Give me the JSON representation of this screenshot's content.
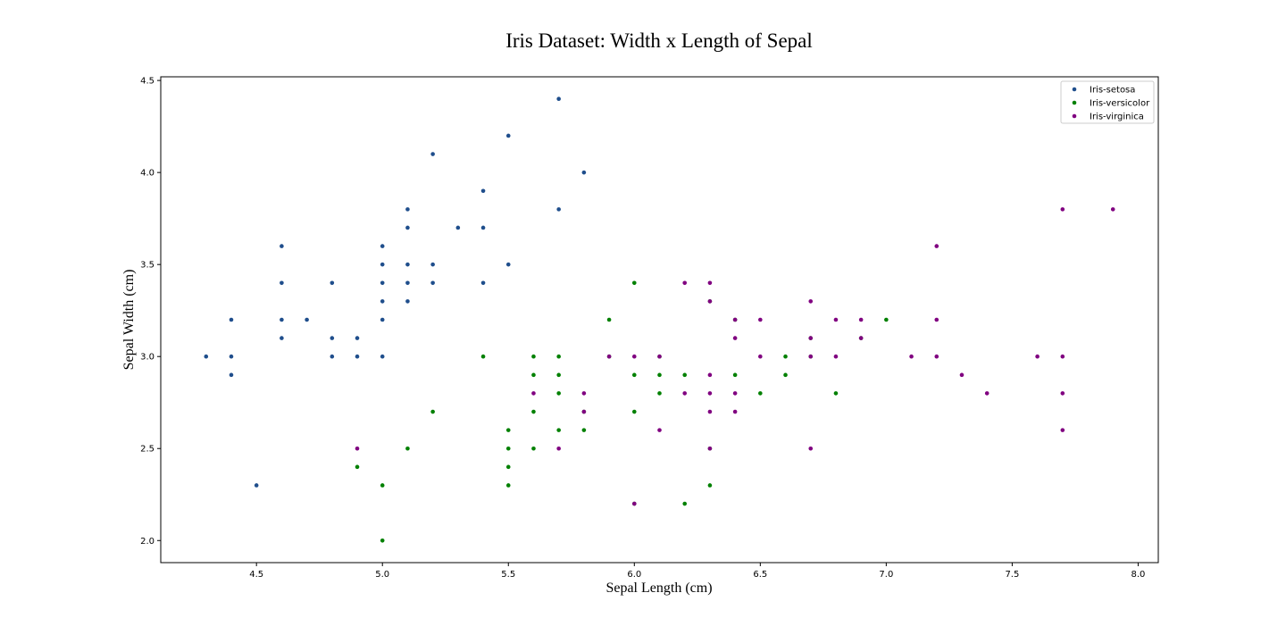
{
  "chart_data": {
    "type": "scatter",
    "title": "Iris Dataset: Width x Length of Sepal",
    "xlabel": "Sepal Length (cm)",
    "ylabel": "Sepal Width (cm)",
    "xlim": [
      4.12,
      8.08
    ],
    "ylim": [
      1.88,
      4.52
    ],
    "x_ticks": [
      4.5,
      5.0,
      5.5,
      6.0,
      6.5,
      7.0,
      7.5,
      8.0
    ],
    "x_tick_labels": [
      "4.5",
      "5.0",
      "5.5",
      "6.0",
      "6.5",
      "7.0",
      "7.5",
      "8.0"
    ],
    "y_ticks": [
      2.0,
      2.5,
      3.0,
      3.5,
      4.0,
      4.5
    ],
    "y_tick_labels": [
      "2.0",
      "2.5",
      "3.0",
      "3.5",
      "4.0",
      "4.5"
    ],
    "grid": false,
    "legend_position": "top-right",
    "series": [
      {
        "name": "Iris-setosa",
        "color": "#1f4e8c",
        "points": [
          [
            4.3,
            3.0
          ],
          [
            4.4,
            3.2
          ],
          [
            4.4,
            3.0
          ],
          [
            4.4,
            2.9
          ],
          [
            4.5,
            2.3
          ],
          [
            4.6,
            3.6
          ],
          [
            4.6,
            3.4
          ],
          [
            4.6,
            3.2
          ],
          [
            4.6,
            3.1
          ],
          [
            4.7,
            3.2
          ],
          [
            4.8,
            3.4
          ],
          [
            4.8,
            3.1
          ],
          [
            4.8,
            3.0
          ],
          [
            4.9,
            3.1
          ],
          [
            4.9,
            3.0
          ],
          [
            5.0,
            3.6
          ],
          [
            5.0,
            3.5
          ],
          [
            5.0,
            3.4
          ],
          [
            5.0,
            3.3
          ],
          [
            5.0,
            3.2
          ],
          [
            5.0,
            3.0
          ],
          [
            5.1,
            3.8
          ],
          [
            5.1,
            3.7
          ],
          [
            5.1,
            3.5
          ],
          [
            5.1,
            3.4
          ],
          [
            5.1,
            3.3
          ],
          [
            5.2,
            4.1
          ],
          [
            5.2,
            3.5
          ],
          [
            5.2,
            3.4
          ],
          [
            5.3,
            3.7
          ],
          [
            5.4,
            3.9
          ],
          [
            5.4,
            3.7
          ],
          [
            5.4,
            3.4
          ],
          [
            5.5,
            4.2
          ],
          [
            5.5,
            3.5
          ],
          [
            5.7,
            4.4
          ],
          [
            5.7,
            3.8
          ],
          [
            5.8,
            4.0
          ]
        ]
      },
      {
        "name": "Iris-versicolor",
        "color": "#008000",
        "points": [
          [
            4.9,
            2.4
          ],
          [
            5.0,
            2.3
          ],
          [
            5.0,
            2.0
          ],
          [
            5.1,
            2.5
          ],
          [
            5.2,
            2.7
          ],
          [
            5.4,
            3.0
          ],
          [
            5.5,
            2.6
          ],
          [
            5.5,
            2.5
          ],
          [
            5.5,
            2.4
          ],
          [
            5.5,
            2.3
          ],
          [
            5.6,
            3.0
          ],
          [
            5.6,
            2.9
          ],
          [
            5.6,
            2.7
          ],
          [
            5.6,
            2.5
          ],
          [
            5.7,
            3.0
          ],
          [
            5.7,
            2.9
          ],
          [
            5.7,
            2.8
          ],
          [
            5.7,
            2.6
          ],
          [
            5.8,
            2.7
          ],
          [
            5.8,
            2.6
          ],
          [
            5.9,
            3.2
          ],
          [
            5.9,
            3.0
          ],
          [
            6.0,
            3.4
          ],
          [
            6.0,
            2.9
          ],
          [
            6.0,
            2.7
          ],
          [
            6.0,
            2.2
          ],
          [
            6.1,
            3.0
          ],
          [
            6.1,
            2.9
          ],
          [
            6.1,
            2.8
          ],
          [
            6.2,
            2.9
          ],
          [
            6.2,
            2.2
          ],
          [
            6.3,
            3.3
          ],
          [
            6.3,
            2.5
          ],
          [
            6.3,
            2.3
          ],
          [
            6.4,
            3.2
          ],
          [
            6.4,
            2.9
          ],
          [
            6.5,
            2.8
          ],
          [
            6.6,
            3.0
          ],
          [
            6.6,
            2.9
          ],
          [
            6.7,
            3.1
          ],
          [
            6.7,
            3.0
          ],
          [
            6.8,
            2.8
          ],
          [
            6.9,
            3.1
          ],
          [
            7.0,
            3.2
          ]
        ]
      },
      {
        "name": "Iris-virginica",
        "color": "#800080",
        "points": [
          [
            4.9,
            2.5
          ],
          [
            5.6,
            2.8
          ],
          [
            5.7,
            2.5
          ],
          [
            5.8,
            2.8
          ],
          [
            5.8,
            2.7
          ],
          [
            5.9,
            3.0
          ],
          [
            6.0,
            3.0
          ],
          [
            6.0,
            2.2
          ],
          [
            6.1,
            3.0
          ],
          [
            6.1,
            2.6
          ],
          [
            6.2,
            3.4
          ],
          [
            6.2,
            2.8
          ],
          [
            6.3,
            3.4
          ],
          [
            6.3,
            3.3
          ],
          [
            6.3,
            2.9
          ],
          [
            6.3,
            2.8
          ],
          [
            6.3,
            2.7
          ],
          [
            6.3,
            2.5
          ],
          [
            6.4,
            3.2
          ],
          [
            6.4,
            3.1
          ],
          [
            6.4,
            2.8
          ],
          [
            6.4,
            2.7
          ],
          [
            6.5,
            3.2
          ],
          [
            6.5,
            3.0
          ],
          [
            6.7,
            3.3
          ],
          [
            6.7,
            3.1
          ],
          [
            6.7,
            3.0
          ],
          [
            6.7,
            2.5
          ],
          [
            6.8,
            3.2
          ],
          [
            6.8,
            3.0
          ],
          [
            6.9,
            3.2
          ],
          [
            6.9,
            3.1
          ],
          [
            7.1,
            3.0
          ],
          [
            7.2,
            3.6
          ],
          [
            7.2,
            3.2
          ],
          [
            7.2,
            3.0
          ],
          [
            7.3,
            2.9
          ],
          [
            7.4,
            2.8
          ],
          [
            7.6,
            3.0
          ],
          [
            7.7,
            3.8
          ],
          [
            7.7,
            3.0
          ],
          [
            7.7,
            2.8
          ],
          [
            7.7,
            2.6
          ],
          [
            7.9,
            3.8
          ]
        ]
      }
    ]
  }
}
